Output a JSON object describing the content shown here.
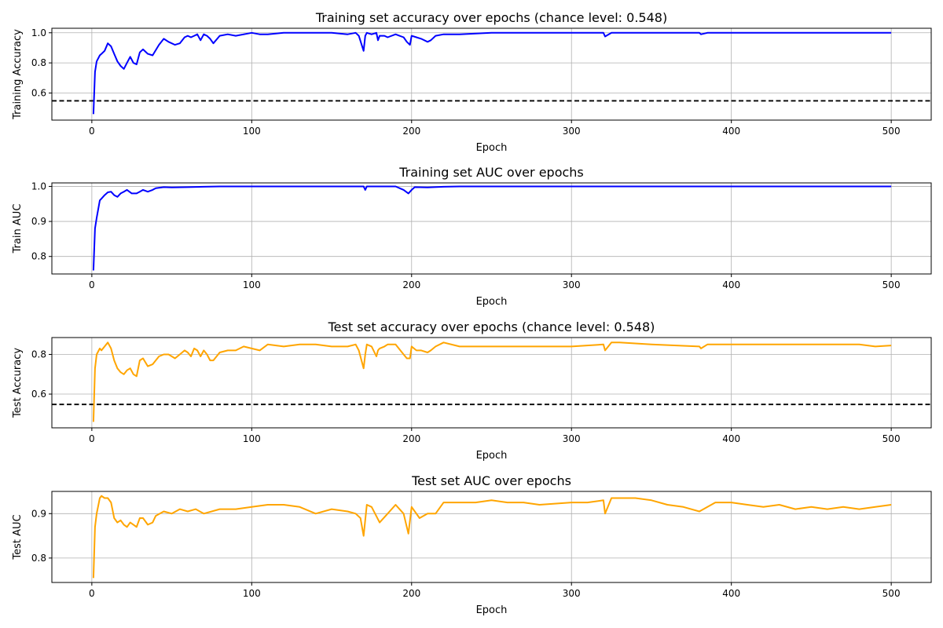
{
  "chart_data": [
    {
      "type": "line",
      "title": "Training set accuracy over epochs (chance level: 0.548)",
      "xlabel": "Epoch",
      "ylabel": "Training Accuracy",
      "xlim": [
        -25,
        525
      ],
      "ylim": [
        0.42,
        1.03
      ],
      "xticks": [
        0,
        100,
        200,
        300,
        400,
        500
      ],
      "yticks": [
        0.6,
        0.8,
        1.0
      ],
      "ytick_labels": [
        "0.6",
        "0.8",
        "1.0"
      ],
      "grid": true,
      "chance_level": 0.548,
      "series": [
        {
          "color": "#0000ff",
          "x": [
            1,
            2,
            3,
            5,
            6,
            8,
            10,
            12,
            14,
            16,
            18,
            20,
            22,
            24,
            26,
            28,
            30,
            32,
            35,
            38,
            42,
            45,
            48,
            52,
            55,
            58,
            60,
            62,
            64,
            66,
            68,
            70,
            72,
            74,
            76,
            80,
            85,
            90,
            100,
            105,
            110,
            120,
            130,
            140,
            150,
            160,
            165,
            167,
            170,
            171,
            172,
            175,
            178,
            179,
            180,
            183,
            185,
            190,
            195,
            197,
            199,
            200,
            203,
            206,
            210,
            212,
            215,
            220,
            230,
            250,
            300,
            320,
            321,
            325,
            330,
            380,
            381,
            385,
            400,
            500
          ],
          "y": [
            0.46,
            0.74,
            0.81,
            0.85,
            0.86,
            0.88,
            0.93,
            0.91,
            0.86,
            0.81,
            0.78,
            0.76,
            0.8,
            0.84,
            0.8,
            0.79,
            0.87,
            0.89,
            0.86,
            0.85,
            0.92,
            0.96,
            0.94,
            0.92,
            0.93,
            0.97,
            0.98,
            0.97,
            0.98,
            0.99,
            0.95,
            0.99,
            0.98,
            0.96,
            0.93,
            0.98,
            0.99,
            0.98,
            1.0,
            0.99,
            0.99,
            1.0,
            1.0,
            1.0,
            1.0,
            0.99,
            1.0,
            0.98,
            0.88,
            0.98,
            1.0,
            0.99,
            1.0,
            0.95,
            0.98,
            0.98,
            0.97,
            0.99,
            0.97,
            0.94,
            0.92,
            0.98,
            0.97,
            0.96,
            0.94,
            0.95,
            0.98,
            0.99,
            0.99,
            1.0,
            1.0,
            1.0,
            0.975,
            1.0,
            1.0,
            1.0,
            0.99,
            1.0,
            1.0,
            1.0
          ]
        }
      ]
    },
    {
      "type": "line",
      "title": "Training set AUC over epochs",
      "xlabel": "Epoch",
      "ylabel": "Train AUC",
      "xlim": [
        -25,
        525
      ],
      "ylim": [
        0.75,
        1.01
      ],
      "xticks": [
        0,
        100,
        200,
        300,
        400,
        500
      ],
      "yticks": [
        0.8,
        0.9,
        1.0
      ],
      "ytick_labels": [
        "0.8",
        "0.9",
        "1.0"
      ],
      "grid": true,
      "series": [
        {
          "color": "#0000ff",
          "x": [
            1,
            2,
            3,
            5,
            6,
            8,
            10,
            12,
            14,
            16,
            18,
            20,
            22,
            25,
            28,
            30,
            32,
            35,
            38,
            40,
            45,
            50,
            60,
            70,
            80,
            90,
            100,
            150,
            170,
            171,
            172,
            180,
            190,
            195,
            198,
            200,
            202,
            210,
            220,
            230,
            300,
            400,
            500
          ],
          "y": [
            0.76,
            0.88,
            0.91,
            0.96,
            0.965,
            0.975,
            0.983,
            0.985,
            0.975,
            0.97,
            0.98,
            0.985,
            0.99,
            0.98,
            0.98,
            0.985,
            0.99,
            0.985,
            0.99,
            0.995,
            0.998,
            0.997,
            0.998,
            0.999,
            1.0,
            1.0,
            1.0,
            1.0,
            1.0,
            0.99,
            1.0,
            1.0,
            1.0,
            0.99,
            0.98,
            0.99,
            0.998,
            0.997,
            0.999,
            1.0,
            1.0,
            1.0,
            1.0
          ]
        }
      ]
    },
    {
      "type": "line",
      "title": "Test set accuracy over epochs (chance level: 0.548)",
      "xlabel": "Epoch",
      "ylabel": "Test Accuracy",
      "xlim": [
        -25,
        525
      ],
      "ylim": [
        0.43,
        0.885
      ],
      "xticks": [
        0,
        100,
        200,
        300,
        400,
        500
      ],
      "yticks": [
        0.6,
        0.8
      ],
      "ytick_labels": [
        "0.6",
        "0.8"
      ],
      "grid": true,
      "chance_level": 0.548,
      "series": [
        {
          "color": "#ffa500",
          "x": [
            1,
            2,
            3,
            5,
            6,
            8,
            10,
            12,
            14,
            16,
            18,
            20,
            22,
            24,
            26,
            28,
            30,
            32,
            35,
            38,
            42,
            45,
            48,
            52,
            55,
            58,
            60,
            62,
            64,
            66,
            68,
            70,
            72,
            74,
            76,
            80,
            85,
            90,
            95,
            100,
            105,
            110,
            120,
            130,
            140,
            150,
            160,
            165,
            167,
            170,
            171,
            172,
            175,
            178,
            179,
            180,
            183,
            185,
            190,
            195,
            197,
            199,
            200,
            203,
            206,
            210,
            212,
            215,
            220,
            230,
            250,
            270,
            290,
            300,
            320,
            321,
            325,
            330,
            350,
            380,
            381,
            385,
            400,
            420,
            440,
            460,
            480,
            490,
            500
          ],
          "y": [
            0.46,
            0.73,
            0.8,
            0.83,
            0.82,
            0.84,
            0.86,
            0.83,
            0.77,
            0.73,
            0.71,
            0.7,
            0.72,
            0.73,
            0.7,
            0.69,
            0.77,
            0.78,
            0.74,
            0.75,
            0.79,
            0.8,
            0.8,
            0.78,
            0.8,
            0.82,
            0.81,
            0.79,
            0.83,
            0.82,
            0.79,
            0.82,
            0.8,
            0.77,
            0.77,
            0.81,
            0.82,
            0.82,
            0.84,
            0.83,
            0.82,
            0.85,
            0.84,
            0.85,
            0.85,
            0.84,
            0.84,
            0.85,
            0.82,
            0.73,
            0.8,
            0.85,
            0.84,
            0.79,
            0.82,
            0.83,
            0.84,
            0.85,
            0.85,
            0.8,
            0.78,
            0.78,
            0.84,
            0.82,
            0.82,
            0.81,
            0.82,
            0.84,
            0.86,
            0.84,
            0.84,
            0.84,
            0.84,
            0.84,
            0.85,
            0.82,
            0.86,
            0.86,
            0.85,
            0.84,
            0.83,
            0.85,
            0.85,
            0.85,
            0.85,
            0.85,
            0.85,
            0.84,
            0.845
          ]
        }
      ]
    },
    {
      "type": "line",
      "title": "Test set AUC over epochs",
      "xlabel": "Epoch",
      "ylabel": "Test AUC",
      "xlim": [
        -25,
        525
      ],
      "ylim": [
        0.745,
        0.95
      ],
      "xticks": [
        0,
        100,
        200,
        300,
        400,
        500
      ],
      "yticks": [
        0.8,
        0.9
      ],
      "ytick_labels": [
        "0.8",
        "0.9"
      ],
      "grid": true,
      "series": [
        {
          "color": "#ffa500",
          "x": [
            1,
            2,
            3,
            5,
            6,
            8,
            10,
            12,
            14,
            16,
            18,
            20,
            22,
            24,
            26,
            28,
            30,
            32,
            35,
            38,
            40,
            45,
            50,
            55,
            60,
            65,
            70,
            80,
            90,
            100,
            110,
            120,
            130,
            140,
            150,
            160,
            165,
            168,
            170,
            172,
            175,
            180,
            185,
            190,
            195,
            198,
            200,
            205,
            210,
            215,
            220,
            230,
            240,
            250,
            260,
            270,
            280,
            300,
            310,
            320,
            321,
            325,
            330,
            340,
            350,
            360,
            370,
            380,
            390,
            400,
            410,
            420,
            430,
            440,
            450,
            460,
            470,
            480,
            490,
            500
          ],
          "y": [
            0.755,
            0.87,
            0.9,
            0.935,
            0.94,
            0.935,
            0.935,
            0.925,
            0.89,
            0.88,
            0.885,
            0.875,
            0.87,
            0.88,
            0.875,
            0.87,
            0.89,
            0.89,
            0.875,
            0.88,
            0.895,
            0.905,
            0.9,
            0.91,
            0.905,
            0.91,
            0.9,
            0.91,
            0.91,
            0.915,
            0.92,
            0.92,
            0.915,
            0.9,
            0.91,
            0.905,
            0.9,
            0.89,
            0.85,
            0.92,
            0.915,
            0.88,
            0.9,
            0.92,
            0.9,
            0.855,
            0.915,
            0.89,
            0.9,
            0.9,
            0.925,
            0.925,
            0.925,
            0.93,
            0.925,
            0.925,
            0.92,
            0.925,
            0.925,
            0.93,
            0.9,
            0.935,
            0.935,
            0.935,
            0.93,
            0.92,
            0.915,
            0.905,
            0.925,
            0.925,
            0.92,
            0.915,
            0.92,
            0.91,
            0.915,
            0.91,
            0.915,
            0.91,
            0.915,
            0.92
          ]
        }
      ]
    }
  ]
}
